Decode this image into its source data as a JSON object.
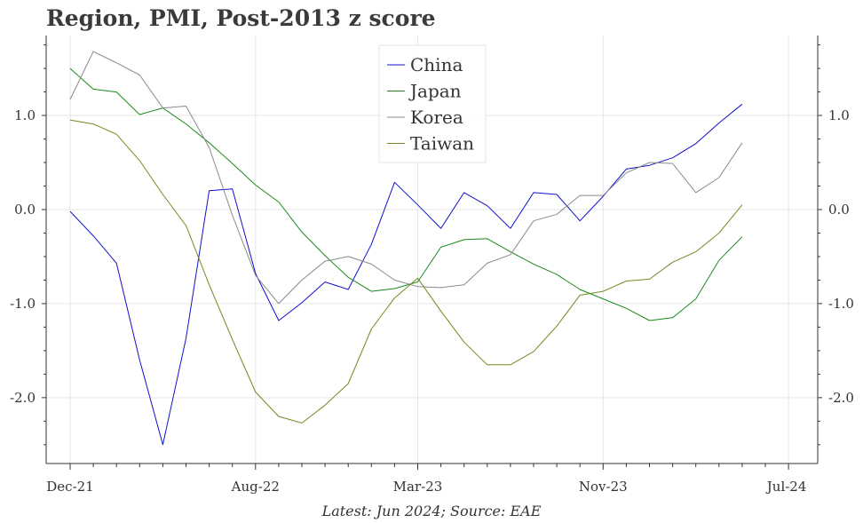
{
  "title": "Region, PMI, Post-2013 z score",
  "footer": "Latest: Jun 2024; Source: EAE",
  "chart_data": {
    "type": "line",
    "title": "Region, PMI, Post-2013 z score",
    "xlabel": "",
    "ylabel": "",
    "ylim": [
      -2.7,
      1.85
    ],
    "y_ticks": [
      1.0,
      0.0,
      -1.0,
      -2.0
    ],
    "y_tick_labels": [
      "1.0",
      "0.0",
      "-1.0",
      "-2.0"
    ],
    "x_tick_labels": [
      "Dec-21",
      "Aug-22",
      "Mar-23",
      "Nov-23",
      "Jul-24"
    ],
    "x_tick_index": [
      0,
      8,
      15,
      23,
      31
    ],
    "x_minor_index": [
      1,
      2,
      3,
      4,
      5,
      6,
      7,
      9,
      10,
      11,
      12,
      13,
      14,
      16,
      17,
      18,
      19,
      20,
      21,
      22,
      24,
      25,
      26,
      27,
      28,
      29,
      30
    ],
    "categories": [
      "Dec-21",
      "Jan-22",
      "Feb-22",
      "Mar-22",
      "Apr-22",
      "May-22",
      "Jun-22",
      "Jul-22",
      "Aug-22",
      "Sep-22",
      "Oct-22",
      "Nov-22",
      "Dec-22",
      "Jan-23",
      "Feb-23",
      "Mar-23",
      "Apr-23",
      "May-23",
      "Jun-23",
      "Jul-23",
      "Aug-23",
      "Sep-23",
      "Oct-23",
      "Nov-23",
      "Dec-23",
      "Jan-24",
      "Feb-24",
      "Mar-24",
      "Apr-24",
      "May-24",
      "Jun-24"
    ],
    "grid": true,
    "legend_position": "top-center",
    "series": [
      {
        "name": "China",
        "color": "#1010d0",
        "values": [
          -0.02,
          -0.28,
          -0.57,
          -1.6,
          -2.5,
          -1.37,
          0.2,
          0.22,
          -0.68,
          -1.18,
          -0.99,
          -0.77,
          -0.85,
          -0.37,
          0.29,
          0.05,
          -0.2,
          0.18,
          0.04,
          -0.2,
          0.18,
          0.16,
          -0.12,
          0.14,
          0.43,
          0.47,
          0.55,
          0.7,
          0.92,
          1.12,
          null
        ]
      },
      {
        "name": "Japan",
        "color": "#1a8a1a",
        "values": [
          1.5,
          1.28,
          1.25,
          1.01,
          1.08,
          0.91,
          0.71,
          0.49,
          0.26,
          0.08,
          -0.24,
          -0.49,
          -0.72,
          -0.87,
          -0.84,
          -0.77,
          -0.4,
          -0.32,
          -0.31,
          -0.45,
          -0.58,
          -0.69,
          -0.85,
          -0.95,
          -1.05,
          -1.18,
          -1.15,
          -0.95,
          -0.54,
          -0.29,
          null
        ]
      },
      {
        "name": "Korea",
        "color": "#8a8a8a",
        "values": [
          1.17,
          1.68,
          1.56,
          1.43,
          1.08,
          1.1,
          0.66,
          -0.06,
          -0.7,
          -1.0,
          -0.75,
          -0.55,
          -0.5,
          -0.58,
          -0.75,
          -0.82,
          -0.83,
          -0.8,
          -0.57,
          -0.48,
          -0.12,
          -0.05,
          0.15,
          0.15,
          0.39,
          0.5,
          0.49,
          0.18,
          0.34,
          0.71,
          null
        ]
      },
      {
        "name": "Taiwan",
        "color": "#6e8c1e",
        "values": [
          0.95,
          0.91,
          0.8,
          0.52,
          0.16,
          -0.17,
          -0.8,
          -1.38,
          -1.94,
          -2.2,
          -2.27,
          -2.08,
          -1.85,
          -1.27,
          -0.94,
          -0.73,
          -1.08,
          -1.41,
          -1.65,
          -1.65,
          -1.51,
          -1.24,
          -0.91,
          -0.87,
          -0.76,
          -0.74,
          -0.56,
          -0.45,
          -0.25,
          0.05,
          null
        ]
      }
    ]
  }
}
